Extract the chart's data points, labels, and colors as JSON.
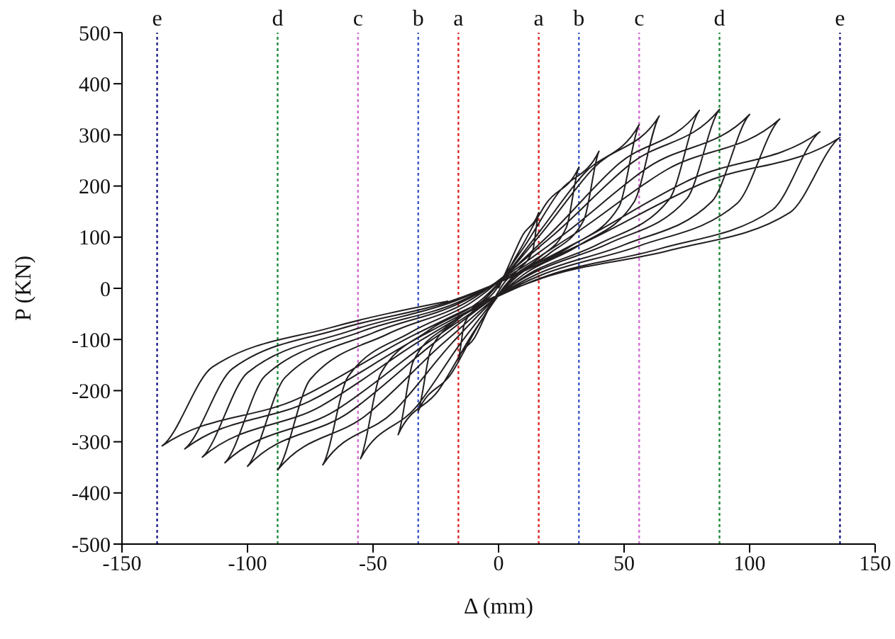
{
  "chart_data": {
    "type": "line",
    "xlabel": "Δ (mm)",
    "ylabel": "P (KN)",
    "xlim": [
      -150,
      150
    ],
    "xticks": [
      -150,
      -100,
      -50,
      0,
      50,
      100,
      150
    ],
    "ylim": [
      -500,
      500
    ],
    "yticks": [
      -500,
      -400,
      -300,
      -200,
      -100,
      0,
      100,
      200,
      300,
      400,
      500
    ],
    "grid": false,
    "legend": false,
    "marker": "none",
    "line_style": "solid",
    "series": [
      {
        "color": "#231f20",
        "x": [
          0,
          4,
          9.6,
          16,
          13.6,
          8,
          2.4,
          -4,
          -9.6,
          -16,
          -13.6,
          -8,
          -2.4,
          8,
          19,
          32,
          27,
          16,
          5,
          -8,
          -19,
          -32,
          -27,
          -16,
          -5,
          10,
          24,
          40,
          34,
          20,
          6,
          -10,
          -24,
          -40,
          -34,
          -20,
          -6,
          14,
          34,
          56,
          48,
          28,
          8,
          -14,
          -33,
          -55,
          -47,
          -28,
          -8,
          16,
          38,
          64,
          54,
          32,
          10,
          -18,
          -42,
          -70,
          -60,
          -35,
          -11,
          20,
          48,
          80,
          68,
          40,
          12,
          -22,
          -53,
          -88,
          -75,
          -44,
          -13,
          22,
          53,
          88,
          75,
          44,
          13,
          -25,
          -60,
          -100,
          -85,
          -50,
          -15,
          25,
          60,
          100,
          85,
          50,
          15,
          -27,
          -65,
          -109,
          -93,
          -55,
          -16,
          28,
          67,
          112,
          95,
          56,
          17,
          -30,
          -71,
          -118,
          -100,
          -59,
          -18,
          32,
          77,
          128,
          109,
          64,
          19,
          -31,
          -75,
          -125,
          -106,
          -63,
          -19,
          34,
          82,
          136,
          116,
          68,
          20,
          -34,
          -80,
          -134,
          -114,
          -67,
          -20
        ],
        "values": [
          0,
          44,
          104,
          148,
          74,
          37,
          12,
          -41,
          -97,
          -138,
          -69,
          -35,
          -11,
          71,
          166,
          237,
          119,
          59,
          19,
          -72,
          -168,
          -240,
          -120,
          -60,
          -19,
          80,
          188,
          268,
          134,
          67,
          21,
          -86,
          -200,
          -286,
          -143,
          -72,
          -23,
          96,
          224,
          320,
          160,
          80,
          26,
          -100,
          -233,
          -333,
          -167,
          -83,
          -27,
          101,
          236,
          337,
          169,
          84,
          27,
          -104,
          -242,
          -345,
          -173,
          -86,
          -28,
          104,
          244,
          348,
          174,
          87,
          28,
          -107,
          -249,
          -355,
          -178,
          -89,
          -28,
          105,
          245,
          350,
          175,
          88,
          28,
          -104,
          -244,
          -348,
          -174,
          -87,
          -28,
          102,
          238,
          340,
          170,
          85,
          27,
          -102,
          -239,
          -341,
          -171,
          -85,
          -27,
          99,
          232,
          331,
          166,
          83,
          26,
          -99,
          -231,
          -330,
          -165,
          -83,
          -26,
          92,
          214,
          306,
          153,
          77,
          24,
          -94,
          -220,
          -314,
          -157,
          -79,
          -25,
          89,
          207,
          295,
          148,
          74,
          24,
          -92,
          -216,
          -308,
          -154,
          -77,
          -25
        ]
      }
    ],
    "ref_lines": [
      {
        "axis": "x",
        "value": -136,
        "label": "e",
        "color": "#1f1f8a",
        "line_style": "dotted"
      },
      {
        "axis": "x",
        "value": -88,
        "label": "d",
        "color": "#1e8a3c",
        "line_style": "dotted"
      },
      {
        "axis": "x",
        "value": -56,
        "label": "c",
        "color": "#d36fd3",
        "line_style": "dotted"
      },
      {
        "axis": "x",
        "value": -32,
        "label": "b",
        "color": "#3c5ac8",
        "line_style": "dotted"
      },
      {
        "axis": "x",
        "value": -16,
        "label": "a",
        "color": "#e02828",
        "line_style": "dotted"
      },
      {
        "axis": "x",
        "value": 16,
        "label": "a",
        "color": "#e02828",
        "line_style": "dotted"
      },
      {
        "axis": "x",
        "value": 32,
        "label": "b",
        "color": "#3c5ac8",
        "line_style": "dotted"
      },
      {
        "axis": "x",
        "value": 56,
        "label": "c",
        "color": "#d36fd3",
        "line_style": "dotted"
      },
      {
        "axis": "x",
        "value": 88,
        "label": "d",
        "color": "#1e8a3c",
        "line_style": "dotted"
      },
      {
        "axis": "x",
        "value": 136,
        "label": "e",
        "color": "#1f1f8a",
        "line_style": "dotted"
      }
    ]
  }
}
